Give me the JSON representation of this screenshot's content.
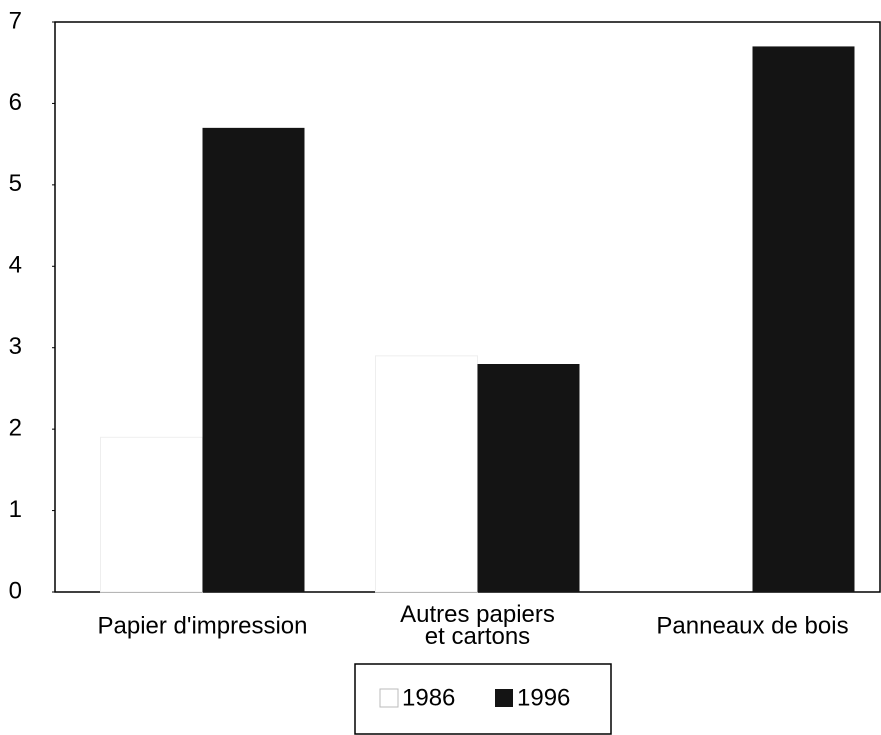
{
  "chart_data": {
    "type": "bar",
    "categories": [
      "Papier d'impression",
      "Autres papiers\net cartons",
      "Panneaux de bois"
    ],
    "series": [
      {
        "name": "1986",
        "color": "#ffffff",
        "values": [
          1.9,
          2.9,
          null
        ]
      },
      {
        "name": "1996",
        "color": "#141414",
        "values": [
          5.7,
          2.8,
          6.7
        ]
      }
    ],
    "ylim": [
      0,
      7
    ],
    "yticks": [
      0,
      1,
      2,
      3,
      4,
      5,
      6,
      7
    ],
    "grid": false,
    "legend": "bottom"
  }
}
